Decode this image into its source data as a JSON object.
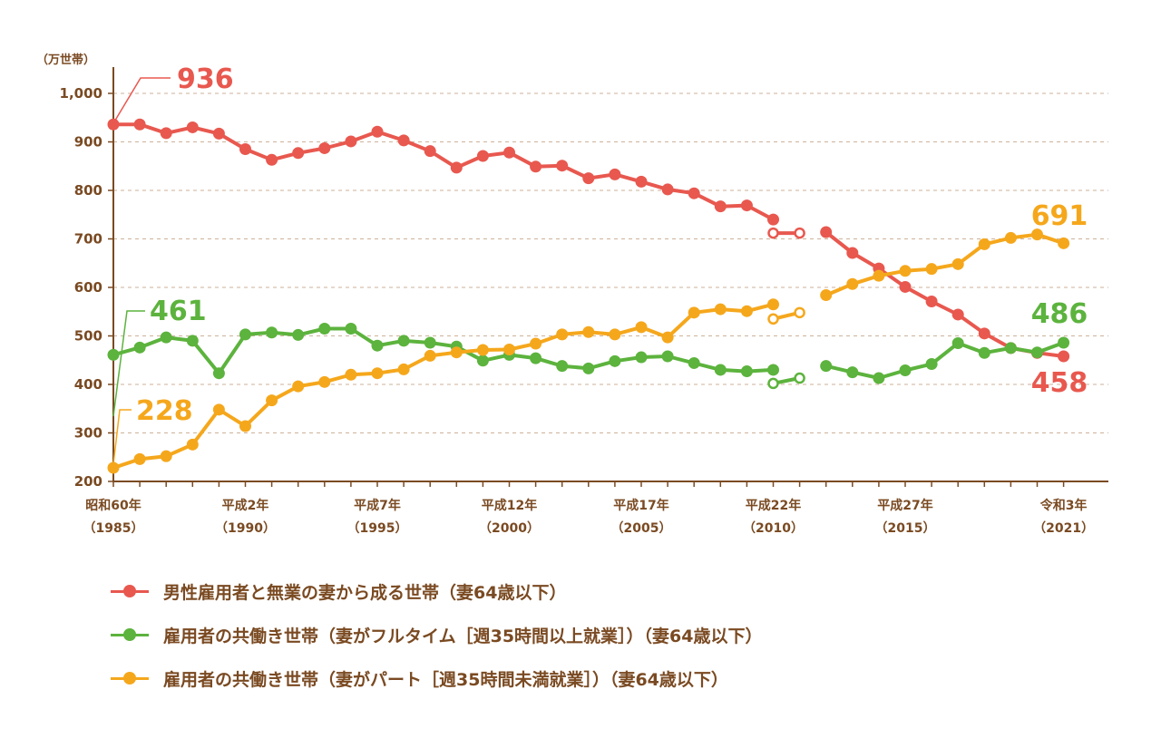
{
  "chart_data": {
    "type": "line",
    "ylabel": "（万世帯）",
    "ylim": [
      200,
      1000
    ],
    "yticks": [
      200,
      300,
      400,
      500,
      600,
      700,
      800,
      900,
      1000
    ],
    "ytick_labels": [
      "200",
      "300",
      "400",
      "500",
      "600",
      "700",
      "800",
      "900",
      "1,000"
    ],
    "grid": "horizontal-dashed",
    "legend_position": "bottom",
    "x": [
      1985,
      1986,
      1987,
      1988,
      1989,
      1990,
      1991,
      1992,
      1993,
      1994,
      1995,
      1996,
      1997,
      1998,
      1999,
      2000,
      2001,
      2002,
      2003,
      2004,
      2005,
      2006,
      2007,
      2008,
      2009,
      2010,
      2011,
      2012,
      2013,
      2014,
      2015,
      2016,
      2017,
      2018,
      2019,
      2020,
      2021
    ],
    "xticks": [
      {
        "year": 1985,
        "line1": "昭和60年",
        "line2": "（1985）"
      },
      {
        "year": 1990,
        "line1": "平成2年",
        "line2": "（1990）"
      },
      {
        "year": 1995,
        "line1": "平成7年",
        "line2": "（1995）"
      },
      {
        "year": 2000,
        "line1": "平成12年",
        "line2": "（2000）"
      },
      {
        "year": 2005,
        "line1": "平成17年",
        "line2": "（2005）"
      },
      {
        "year": 2010,
        "line1": "平成22年",
        "line2": "（2010）"
      },
      {
        "year": 2015,
        "line1": "平成27年",
        "line2": "（2015）"
      },
      {
        "year": 2021,
        "line1": "令和3年",
        "line2": "（2021）"
      }
    ],
    "series": [
      {
        "name": "男性雇用者と無業の妻から成る世帯（妻64歳以下）",
        "color": "#e8584f",
        "main": [
          [
            1985,
            936
          ],
          [
            1986,
            936
          ],
          [
            1987,
            918
          ],
          [
            1988,
            930
          ],
          [
            1989,
            917
          ],
          [
            1990,
            885
          ],
          [
            1991,
            863
          ],
          [
            1992,
            877
          ],
          [
            1993,
            887
          ],
          [
            1994,
            901
          ],
          [
            1995,
            921
          ],
          [
            1996,
            903
          ],
          [
            1997,
            881
          ],
          [
            1998,
            847
          ],
          [
            1999,
            871
          ],
          [
            2000,
            878
          ],
          [
            2001,
            849
          ],
          [
            2002,
            851
          ],
          [
            2003,
            825
          ],
          [
            2004,
            833
          ],
          [
            2005,
            818
          ],
          [
            2006,
            802
          ],
          [
            2007,
            794
          ],
          [
            2008,
            767
          ],
          [
            2009,
            769
          ],
          [
            2010,
            740
          ]
        ],
        "supplementary": [
          [
            2010,
            712
          ],
          [
            2011,
            712
          ]
        ],
        "main2": [
          [
            2012,
            714
          ],
          [
            2013,
            671
          ],
          [
            2014,
            639
          ],
          [
            2015,
            601
          ],
          [
            2016,
            571
          ],
          [
            2017,
            544
          ],
          [
            2018,
            505
          ],
          [
            2019,
            475
          ],
          [
            2020,
            465
          ],
          [
            2021,
            458
          ]
        ]
      },
      {
        "name": "雇用者の共働き世帯（妻がフルタイム［週35時間以上就業］）（妻64歳以下）",
        "color": "#5cb33d",
        "main": [
          [
            1985,
            461
          ],
          [
            1986,
            476
          ],
          [
            1987,
            497
          ],
          [
            1988,
            490
          ],
          [
            1989,
            423
          ],
          [
            1990,
            503
          ],
          [
            1991,
            507
          ],
          [
            1992,
            502
          ],
          [
            1993,
            515
          ],
          [
            1994,
            515
          ],
          [
            1995,
            480
          ],
          [
            1996,
            490
          ],
          [
            1997,
            486
          ],
          [
            1998,
            478
          ],
          [
            1999,
            449
          ],
          [
            2000,
            461
          ],
          [
            2001,
            454
          ],
          [
            2002,
            438
          ],
          [
            2003,
            433
          ],
          [
            2004,
            448
          ],
          [
            2005,
            456
          ],
          [
            2006,
            458
          ],
          [
            2007,
            444
          ],
          [
            2008,
            430
          ],
          [
            2009,
            427
          ],
          [
            2010,
            430
          ]
        ],
        "supplementary": [
          [
            2010,
            402
          ],
          [
            2011,
            413
          ]
        ],
        "main2": [
          [
            2012,
            438
          ],
          [
            2013,
            425
          ],
          [
            2014,
            413
          ],
          [
            2015,
            429
          ],
          [
            2016,
            442
          ],
          [
            2017,
            485
          ],
          [
            2018,
            465
          ],
          [
            2019,
            475
          ],
          [
            2020,
            466
          ],
          [
            2021,
            486
          ]
        ]
      },
      {
        "name": "雇用者の共働き世帯（妻がパート［週35時間未満就業］）（妻64歳以下）",
        "color": "#f5a71c",
        "main": [
          [
            1985,
            228
          ],
          [
            1986,
            246
          ],
          [
            1987,
            252
          ],
          [
            1988,
            276
          ],
          [
            1989,
            348
          ],
          [
            1990,
            314
          ],
          [
            1991,
            367
          ],
          [
            1992,
            396
          ],
          [
            1993,
            405
          ],
          [
            1994,
            420
          ],
          [
            1995,
            423
          ],
          [
            1996,
            431
          ],
          [
            1997,
            459
          ],
          [
            1998,
            466
          ],
          [
            1999,
            471
          ],
          [
            2000,
            472
          ],
          [
            2001,
            484
          ],
          [
            2002,
            503
          ],
          [
            2003,
            508
          ],
          [
            2004,
            503
          ],
          [
            2005,
            518
          ],
          [
            2006,
            497
          ],
          [
            2007,
            548
          ],
          [
            2008,
            555
          ],
          [
            2009,
            551
          ],
          [
            2010,
            565
          ]
        ],
        "supplementary": [
          [
            2010,
            535
          ],
          [
            2011,
            548
          ]
        ],
        "main2": [
          [
            2012,
            584
          ],
          [
            2013,
            607
          ],
          [
            2014,
            624
          ],
          [
            2015,
            634
          ],
          [
            2016,
            638
          ],
          [
            2017,
            648
          ],
          [
            2018,
            689
          ],
          [
            2019,
            702
          ],
          [
            2020,
            709
          ],
          [
            2021,
            691
          ]
        ]
      }
    ],
    "annotations": [
      {
        "text": "936",
        "year": 1985,
        "value": 936,
        "series": 0
      },
      {
        "text": "461",
        "year": 1985,
        "value": 461,
        "series": 1
      },
      {
        "text": "228",
        "year": 1985,
        "value": 228,
        "series": 2
      },
      {
        "text": "691",
        "year": 2021,
        "value": 691,
        "series": 2
      },
      {
        "text": "486",
        "year": 2021,
        "value": 486,
        "series": 1
      },
      {
        "text": "458",
        "year": 2021,
        "value": 458,
        "series": 0
      }
    ]
  }
}
